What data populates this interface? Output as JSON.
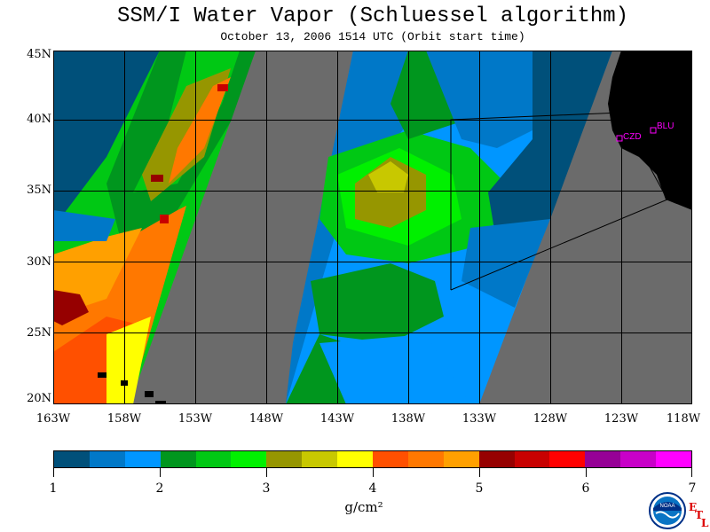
{
  "title": "SSM/I Water Vapor (Schluessel algorithm)",
  "subtitle": "October 13, 2006  1514 UTC  (Orbit start time)",
  "map": {
    "lat_labels": [
      "45N",
      "40N",
      "35N",
      "30N",
      "25N",
      "20N"
    ],
    "lon_labels": [
      "163W",
      "158W",
      "153W",
      "148W",
      "143W",
      "138W",
      "133W",
      "128W",
      "123W",
      "118W"
    ],
    "stations": [
      {
        "code": "CZD",
        "color": "#ff00ff"
      },
      {
        "code": "BLU",
        "color": "#ff00ff"
      }
    ],
    "colors": {
      "no_data": "#6b6b6b",
      "land": "#000000",
      "grid": "#000000",
      "station": "#ff00ff"
    }
  },
  "colorbar": {
    "colors": [
      "#00507a",
      "#0078c8",
      "#0096ff",
      "#00961e",
      "#00c814",
      "#00f000",
      "#969600",
      "#c8c800",
      "#ffff00",
      "#ff5000",
      "#ff7800",
      "#ffa000",
      "#960000",
      "#c80000",
      "#ff0000",
      "#960096",
      "#c800c8",
      "#ff00ff"
    ],
    "labels": [
      "1",
      "2",
      "3",
      "4",
      "5",
      "6",
      "7"
    ],
    "unit": "g/cm²"
  },
  "logo": {
    "text": "NOAA",
    "etl_letters": [
      "E",
      "T",
      "L"
    ]
  }
}
